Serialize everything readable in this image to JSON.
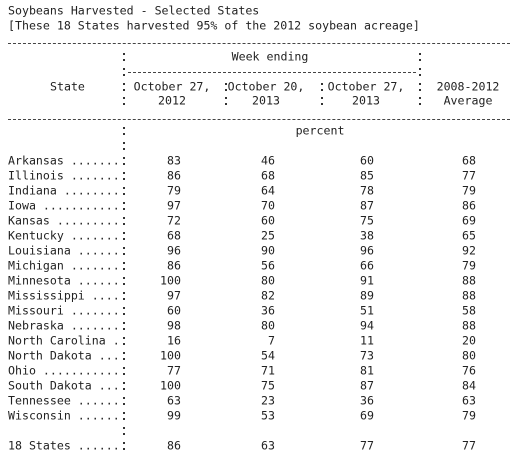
{
  "title": "Soybeans Harvested - Selected States",
  "subtitle": "[These 18 States harvested 95% of the 2012 soybean acreage]",
  "table": {
    "group_header": "Week ending",
    "state_header": "State",
    "columns": [
      [
        "October 27,",
        "2012"
      ],
      [
        "October 20,",
        "2013"
      ],
      [
        "October 27,",
        "2013"
      ],
      [
        "2008-2012",
        "Average"
      ]
    ],
    "unit": "percent",
    "rows": [
      {
        "label": "Arkansas .......",
        "values": [
          83,
          46,
          60,
          68
        ]
      },
      {
        "label": "Illinois .......",
        "values": [
          86,
          68,
          85,
          77
        ]
      },
      {
        "label": "Indiana ........",
        "values": [
          79,
          64,
          78,
          79
        ]
      },
      {
        "label": "Iowa ...........",
        "values": [
          97,
          70,
          87,
          86
        ]
      },
      {
        "label": "Kansas .........",
        "values": [
          72,
          60,
          75,
          69
        ]
      },
      {
        "label": "Kentucky .......",
        "values": [
          68,
          25,
          38,
          65
        ]
      },
      {
        "label": "Louisiana ......",
        "values": [
          96,
          90,
          96,
          92
        ]
      },
      {
        "label": "Michigan .......",
        "values": [
          86,
          56,
          66,
          79
        ]
      },
      {
        "label": "Minnesota ......",
        "values": [
          100,
          80,
          91,
          88
        ]
      },
      {
        "label": "Mississippi ....",
        "values": [
          97,
          82,
          89,
          88
        ]
      },
      {
        "label": "Missouri .......",
        "values": [
          60,
          36,
          51,
          58
        ]
      },
      {
        "label": "Nebraska .......",
        "values": [
          98,
          80,
          94,
          88
        ]
      },
      {
        "label": "North Carolina .",
        "values": [
          16,
          7,
          11,
          20
        ]
      },
      {
        "label": "North Dakota ...",
        "values": [
          100,
          54,
          73,
          80
        ]
      },
      {
        "label": "Ohio ...........",
        "values": [
          77,
          71,
          81,
          76
        ]
      },
      {
        "label": "South Dakota ...",
        "values": [
          100,
          75,
          87,
          84
        ]
      },
      {
        "label": "Tennessee ......",
        "values": [
          63,
          23,
          36,
          63
        ]
      },
      {
        "label": "Wisconsin ......",
        "values": [
          99,
          53,
          69,
          79
        ]
      }
    ],
    "total": {
      "label": "18 States ......",
      "values": [
        86,
        63,
        77,
        77
      ]
    }
  }
}
